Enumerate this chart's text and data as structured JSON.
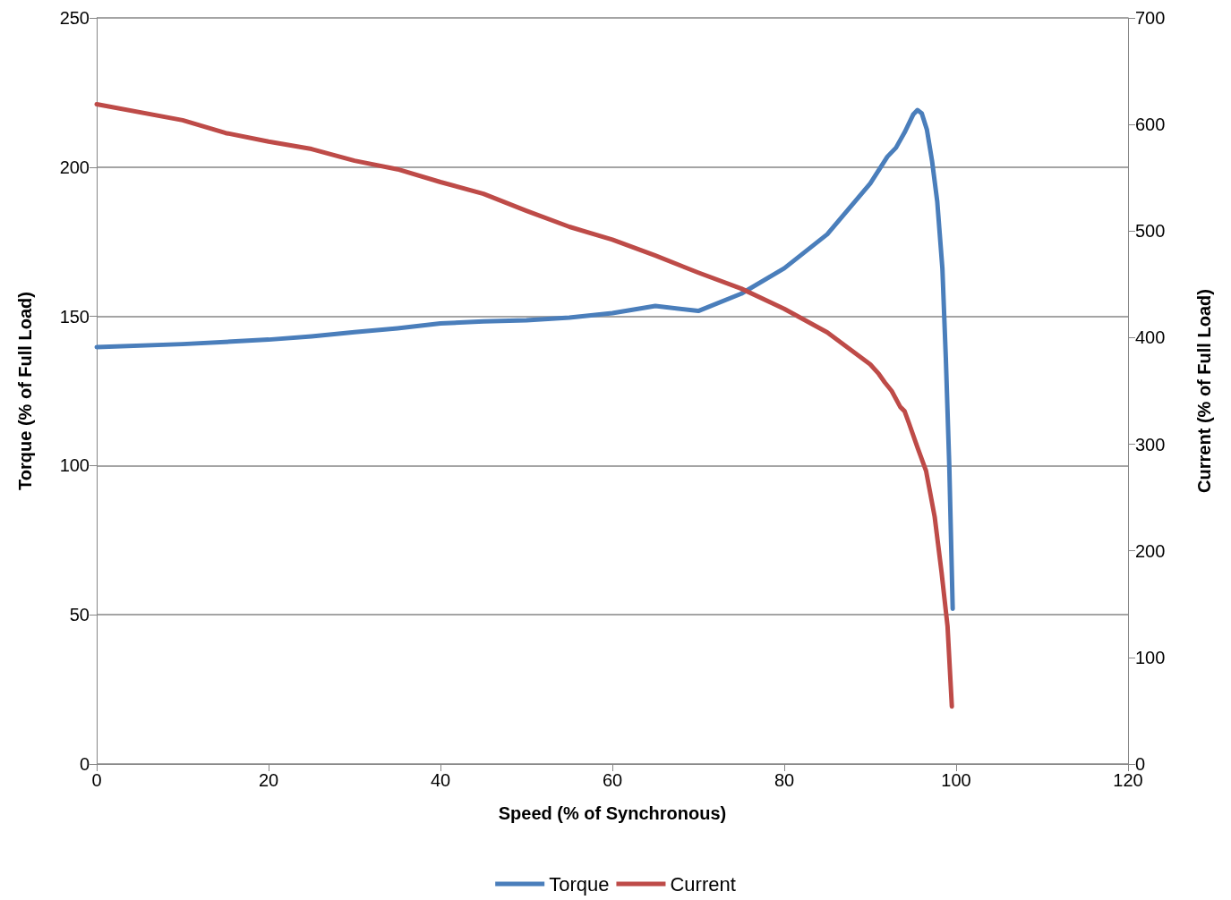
{
  "chart_data": {
    "type": "line",
    "xlabel": "Speed (% of Synchronous)",
    "ylabel": "Torque (% of Full Load)",
    "y2label": "Current (% of Full Load)",
    "xlim": [
      0,
      120
    ],
    "xticks": [
      0,
      20,
      40,
      60,
      80,
      100,
      120
    ],
    "ylim": [
      0,
      250
    ],
    "yticks": [
      0,
      50,
      100,
      150,
      200,
      250
    ],
    "y2lim": [
      0,
      700
    ],
    "y2ticks": [
      0,
      100,
      200,
      300,
      400,
      500,
      600,
      700
    ],
    "grid": "y",
    "legend": "bottom",
    "marker": "none",
    "line_style": "solid",
    "series": [
      {
        "name": "Torque",
        "color": "#4a7ebb",
        "x": [
          0,
          10,
          20,
          25,
          30,
          35,
          40,
          45,
          50,
          55,
          60,
          65,
          70,
          75,
          80,
          85,
          90,
          92,
          93,
          94,
          95,
          95.5,
          96,
          96.6,
          97.2,
          97.8,
          98.4,
          98.8,
          99.2,
          99.6
        ],
        "values": [
          139.7,
          140.7,
          142.2,
          143.3,
          144.7,
          146,
          147.6,
          148.3,
          148.7,
          149.6,
          151.1,
          153.5,
          151.8,
          157.6,
          166.1,
          177.5,
          194.5,
          203.5,
          206.5,
          211.6,
          217.6,
          219.1,
          218,
          212.5,
          202,
          188.5,
          166,
          136,
          100,
          52
        ]
      },
      {
        "name": "Current",
        "color": "#be4b48",
        "axis": "y2",
        "x": [
          0,
          10,
          15,
          20,
          25,
          30,
          35,
          40,
          45,
          50,
          55,
          60,
          65,
          70,
          75,
          80,
          85,
          90,
          91,
          91.7,
          92.5,
          93.5,
          94,
          94.5,
          95.5,
          96.5,
          97.5,
          98.3,
          99,
          99.5
        ],
        "values": [
          619,
          604,
          592,
          584,
          577,
          566,
          558,
          546,
          535,
          519,
          504,
          492,
          477,
          461,
          446,
          427,
          405,
          375,
          366,
          358,
          350,
          335,
          331,
          320,
          297,
          275,
          232,
          180,
          129,
          54
        ]
      }
    ]
  }
}
